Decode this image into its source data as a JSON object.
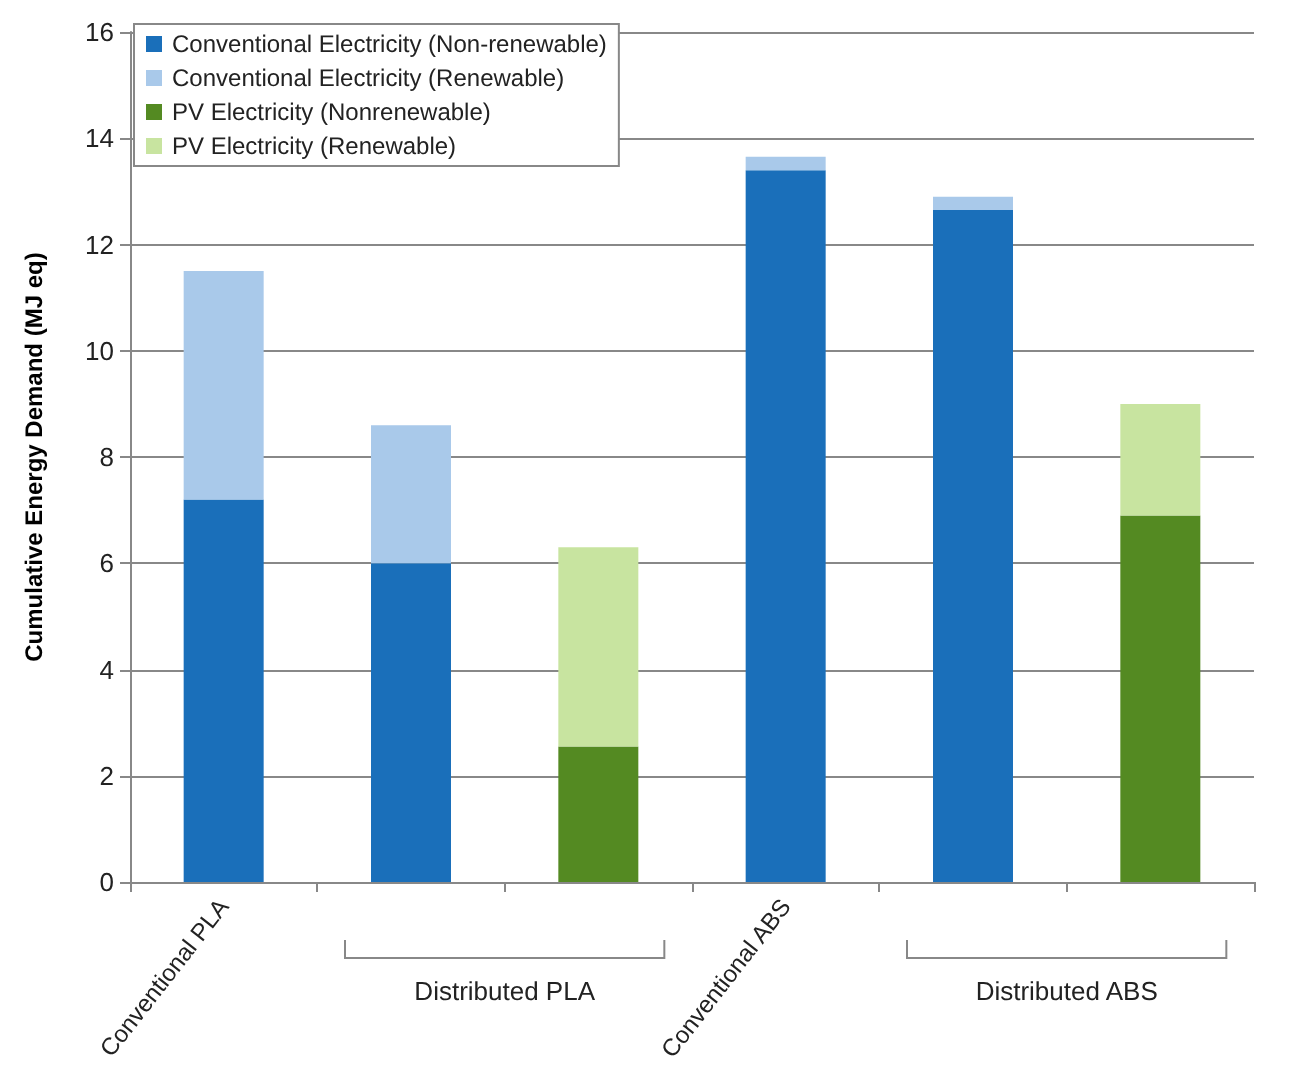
{
  "chart_data": {
    "type": "bar",
    "stacked": true,
    "ylabel": "Cumulative Energy Demand (MJ eq)",
    "categories": [
      "Conventional PLA",
      null,
      null,
      "Conventional ABS",
      null,
      null
    ],
    "series": [
      {
        "name": "Conventional Electricity (Non-renewable)",
        "color": "#1a6fba",
        "values": [
          7.2,
          6.0,
          null,
          13.4,
          12.65,
          null
        ]
      },
      {
        "name": "Conventional Electricity (Renewable)",
        "color": "#a9c9ea",
        "values": [
          4.3,
          2.6,
          null,
          0.25,
          0.25,
          null
        ]
      },
      {
        "name": "PV Electricity (Nonrenewable)",
        "color": "#548a22",
        "values": [
          null,
          null,
          2.55,
          null,
          null,
          6.9
        ]
      },
      {
        "name": "PV Electricity (Renewable)",
        "color": "#c8e4a0",
        "values": [
          null,
          null,
          3.75,
          null,
          null,
          2.1
        ]
      }
    ],
    "annotations": [
      "Distributed PLA",
      "Distributed ABS"
    ],
    "ylim": [
      0,
      16
    ],
    "yticks": [
      0,
      2,
      4,
      6,
      8,
      10,
      12,
      14,
      16
    ],
    "grid": "y",
    "legend": "top left"
  }
}
